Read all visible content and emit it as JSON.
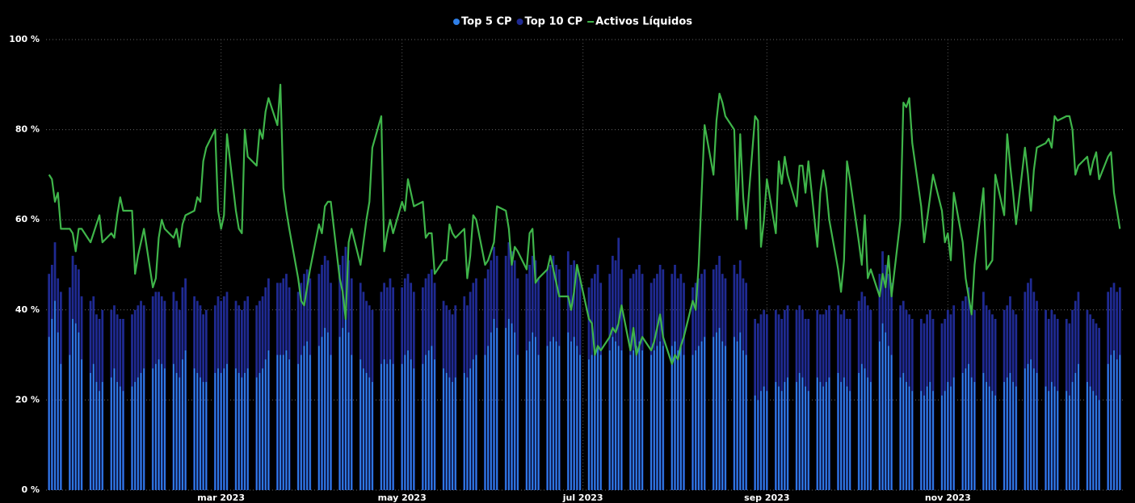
{
  "chart_data": {
    "type": "bar-line",
    "x": [
      2,
      3,
      4,
      5,
      6,
      9,
      10,
      11,
      12,
      13,
      16,
      17,
      18,
      19,
      20,
      23,
      24,
      25,
      26,
      27,
      30,
      31,
      32,
      33,
      34,
      37,
      38,
      39,
      40,
      41,
      44,
      45,
      46,
      47,
      48,
      51,
      52,
      53,
      54,
      55,
      58,
      59,
      60,
      61,
      62,
      65,
      66,
      67,
      68,
      69,
      72,
      73,
      74,
      75,
      76,
      79,
      80,
      81,
      82,
      83,
      86,
      87,
      88,
      89,
      90,
      93,
      94,
      95,
      96,
      97,
      100,
      101,
      102,
      103,
      104,
      107,
      108,
      109,
      110,
      111,
      114,
      115,
      116,
      117,
      118,
      121,
      122,
      123,
      124,
      125,
      128,
      129,
      130,
      131,
      132,
      135,
      136,
      137,
      138,
      139,
      142,
      143,
      144,
      145,
      146,
      149,
      150,
      151,
      152,
      153,
      156,
      157,
      158,
      159,
      160,
      163,
      164,
      165,
      166,
      167,
      170,
      171,
      172,
      173,
      174,
      177,
      178,
      179,
      180,
      181,
      184,
      185,
      186,
      187,
      188,
      191,
      192,
      193,
      194,
      195,
      198,
      199,
      200,
      201,
      202,
      205,
      206,
      207,
      208,
      209,
      212,
      213,
      214,
      215,
      216,
      219,
      220,
      221,
      222,
      223,
      226,
      227,
      228,
      229,
      230,
      233,
      234,
      235,
      236,
      237,
      240,
      241,
      242,
      243,
      244,
      247,
      248,
      249,
      250,
      251,
      254,
      255,
      256,
      257,
      258,
      261,
      262,
      263,
      264,
      265,
      268,
      269,
      270,
      271,
      272,
      275,
      276,
      277,
      278,
      279,
      282,
      283,
      284,
      285,
      286,
      289,
      290,
      291,
      292,
      293,
      296,
      297,
      298,
      299,
      300,
      303,
      304,
      305,
      306,
      307,
      310,
      311,
      312,
      313,
      314,
      317,
      318,
      319,
      320,
      321,
      324,
      325,
      326,
      327,
      328,
      331,
      332,
      333,
      334,
      335,
      338,
      339,
      340,
      341,
      342,
      345,
      346,
      347,
      348,
      349,
      352,
      353,
      354,
      355,
      356,
      359,
      360,
      361,
      362,
      363
    ],
    "series": [
      {
        "name": "Top 5 CP",
        "kind": "bar",
        "color": "#2f7fe8",
        "values": [
          34,
          38,
          42,
          35,
          28,
          30,
          38,
          37,
          35,
          29,
          26,
          28,
          24,
          22,
          24,
          25,
          27,
          24,
          23,
          22,
          23,
          24,
          25,
          26,
          27,
          27,
          28,
          29,
          28,
          27,
          28,
          26,
          25,
          29,
          31,
          27,
          26,
          25,
          24,
          24,
          26,
          27,
          26,
          27,
          28,
          27,
          26,
          25,
          26,
          27,
          25,
          26,
          27,
          29,
          31,
          30,
          30,
          30,
          31,
          29,
          28,
          30,
          32,
          33,
          30,
          32,
          34,
          36,
          35,
          30,
          34,
          36,
          38,
          35,
          30,
          29,
          27,
          26,
          25,
          24,
          28,
          29,
          28,
          29,
          28,
          28,
          30,
          31,
          29,
          27,
          28,
          30,
          31,
          32,
          29,
          27,
          26,
          25,
          24,
          25,
          26,
          25,
          27,
          29,
          30,
          30,
          32,
          35,
          38,
          36,
          36,
          38,
          37,
          35,
          30,
          31,
          33,
          35,
          34,
          30,
          32,
          33,
          34,
          33,
          32,
          35,
          33,
          34,
          32,
          30,
          29,
          30,
          31,
          32,
          30,
          31,
          34,
          33,
          32,
          31,
          30,
          31,
          32,
          33,
          31,
          30,
          31,
          32,
          33,
          32,
          32,
          33,
          31,
          32,
          30,
          30,
          31,
          32,
          33,
          34,
          34,
          35,
          36,
          33,
          32,
          34,
          33,
          35,
          31,
          30,
          21,
          20,
          22,
          23,
          22,
          24,
          23,
          22,
          24,
          25,
          24,
          26,
          25,
          23,
          22,
          25,
          24,
          23,
          24,
          25,
          26,
          24,
          25,
          23,
          22,
          26,
          28,
          27,
          25,
          24,
          33,
          37,
          35,
          32,
          30,
          25,
          26,
          24,
          23,
          22,
          22,
          21,
          23,
          24,
          22,
          21,
          22,
          24,
          23,
          25,
          26,
          27,
          28,
          25,
          24,
          26,
          24,
          23,
          22,
          21,
          24,
          25,
          26,
          24,
          23,
          27,
          28,
          29,
          27,
          26,
          23,
          22,
          24,
          23,
          22,
          22,
          21,
          24,
          26,
          28,
          24,
          23,
          22,
          21,
          20,
          28,
          30,
          31,
          29,
          30
        ]
      },
      {
        "name": "Top 10 CP",
        "kind": "bar",
        "color": "#1f2a92",
        "values": [
          48,
          50,
          55,
          47,
          44,
          45,
          52,
          50,
          49,
          43,
          42,
          43,
          39,
          38,
          40,
          40,
          41,
          39,
          38,
          38,
          39,
          40,
          41,
          42,
          41,
          43,
          44,
          44,
          43,
          42,
          44,
          42,
          40,
          45,
          47,
          43,
          42,
          41,
          39,
          40,
          41,
          43,
          42,
          43,
          44,
          42,
          41,
          40,
          42,
          43,
          41,
          42,
          43,
          45,
          47,
          46,
          46,
          47,
          48,
          45,
          44,
          46,
          48,
          49,
          47,
          48,
          50,
          52,
          51,
          46,
          50,
          52,
          54,
          51,
          47,
          46,
          44,
          42,
          41,
          40,
          44,
          46,
          45,
          47,
          45,
          45,
          47,
          48,
          46,
          44,
          45,
          47,
          48,
          49,
          46,
          42,
          41,
          40,
          39,
          41,
          43,
          41,
          44,
          46,
          47,
          47,
          49,
          51,
          54,
          52,
          52,
          55,
          53,
          51,
          47,
          48,
          50,
          52,
          51,
          47,
          49,
          50,
          52,
          50,
          49,
          53,
          50,
          51,
          49,
          47,
          45,
          47,
          48,
          50,
          46,
          48,
          52,
          51,
          56,
          49,
          47,
          48,
          49,
          50,
          48,
          46,
          47,
          48,
          50,
          49,
          48,
          50,
          47,
          48,
          46,
          45,
          46,
          47,
          48,
          49,
          49,
          50,
          52,
          48,
          47,
          50,
          48,
          51,
          47,
          46,
          38,
          37,
          39,
          40,
          39,
          40,
          39,
          38,
          40,
          41,
          40,
          41,
          40,
          38,
          38,
          40,
          39,
          39,
          40,
          41,
          41,
          39,
          40,
          38,
          38,
          42,
          44,
          43,
          41,
          40,
          48,
          53,
          50,
          48,
          46,
          41,
          42,
          40,
          39,
          38,
          38,
          37,
          39,
          40,
          38,
          37,
          38,
          40,
          39,
          41,
          42,
          43,
          45,
          41,
          40,
          44,
          41,
          40,
          39,
          38,
          40,
          41,
          43,
          40,
          39,
          44,
          46,
          47,
          44,
          42,
          40,
          38,
          40,
          39,
          38,
          38,
          37,
          40,
          42,
          44,
          40,
          39,
          38,
          37,
          36,
          44,
          45,
          46,
          44,
          45
        ]
      },
      {
        "name": "Activos Líquidos",
        "kind": "line",
        "color": "#3fb54a",
        "values": [
          70,
          69,
          64,
          66,
          58,
          58,
          57,
          53,
          58,
          58,
          55,
          57,
          59,
          61,
          55,
          57,
          56,
          61,
          65,
          62,
          62,
          48,
          52,
          55,
          58,
          45,
          47,
          56,
          60,
          58,
          56,
          58,
          54,
          59,
          61,
          62,
          65,
          64,
          73,
          76,
          80,
          62,
          58,
          61,
          79,
          62,
          58,
          57,
          80,
          74,
          72,
          80,
          78,
          84,
          87,
          81,
          90,
          67,
          62,
          58,
          47,
          42,
          41,
          45,
          49,
          59,
          57,
          63,
          64,
          64,
          47,
          44,
          38,
          55,
          58,
          50,
          55,
          60,
          64,
          76,
          83,
          53,
          57,
          60,
          57,
          64,
          62,
          69,
          66,
          63,
          64,
          56,
          57,
          57,
          48,
          51,
          51,
          59,
          57,
          56,
          58,
          47,
          52,
          61,
          60,
          50,
          51,
          53,
          55,
          63,
          62,
          58,
          50,
          54,
          53,
          49,
          57,
          58,
          46,
          47,
          49,
          52,
          49,
          46,
          43,
          43,
          40,
          44,
          50,
          47,
          38,
          37,
          30,
          32,
          31,
          34,
          36,
          35,
          37,
          41,
          31,
          36,
          30,
          32,
          34,
          31,
          33,
          36,
          39,
          34,
          28,
          30,
          29,
          32,
          34,
          42,
          40,
          50,
          66,
          81,
          70,
          82,
          88,
          86,
          83,
          80,
          60,
          79,
          65,
          58,
          83,
          82,
          54,
          60,
          69,
          57,
          73,
          68,
          74,
          70,
          63,
          72,
          72,
          66,
          73,
          54,
          66,
          71,
          67,
          60,
          49,
          44,
          51,
          73,
          69,
          55,
          50,
          61,
          47,
          49,
          43,
          48,
          45,
          52,
          43,
          60,
          86,
          85,
          87,
          77,
          63,
          55,
          60,
          65,
          70,
          62,
          55,
          57,
          51,
          66,
          55,
          47,
          43,
          39,
          50,
          67,
          49,
          50,
          51,
          70,
          61,
          79,
          72,
          66,
          59,
          76,
          70,
          62,
          71,
          76,
          77,
          78,
          76,
          83,
          82,
          83,
          83,
          80,
          70,
          72,
          74,
          70,
          73,
          75,
          69,
          74,
          75,
          66,
          62,
          58
        ]
      }
    ],
    "xlim": [
      1,
      364
    ],
    "xticks": [
      {
        "value": 60,
        "label": "mar 2023"
      },
      {
        "value": 121,
        "label": "may 2023"
      },
      {
        "value": 182,
        "label": "jul 2023"
      },
      {
        "value": 244,
        "label": "sep 2023"
      },
      {
        "value": 305,
        "label": "nov 2023"
      }
    ],
    "ylim": [
      0,
      100
    ],
    "yticks": [
      {
        "value": 0,
        "label": "0 %"
      },
      {
        "value": 20,
        "label": "20 %"
      },
      {
        "value": 40,
        "label": "40 %"
      },
      {
        "value": 60,
        "label": "60 %"
      },
      {
        "value": 80,
        "label": "80 %"
      },
      {
        "value": 100,
        "label": "100 %"
      }
    ],
    "grid": true,
    "legend": "top"
  }
}
